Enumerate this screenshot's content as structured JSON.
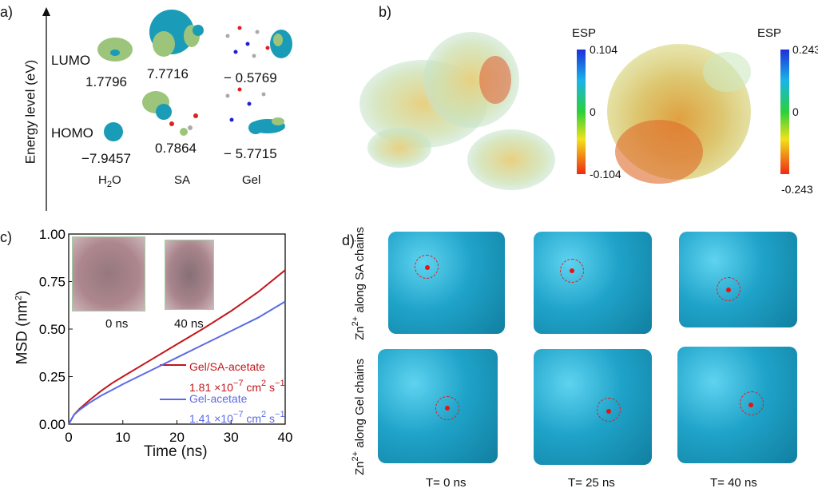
{
  "panels": {
    "a": "a)",
    "b": "b)",
    "c": "c)",
    "d": "d)"
  },
  "panel_a": {
    "ylabel": "Energy level (eV)",
    "lumo_label": "LUMO",
    "homo_label": "HOMO",
    "molecules": [
      {
        "name_main": "H",
        "name_sub": "2",
        "name_tail": "O",
        "lumo": "1.7796",
        "homo": "−7.9457"
      },
      {
        "name_main": "SA",
        "name_sub": "",
        "name_tail": "",
        "lumo": "7.7716",
        "homo": "0.7864"
      },
      {
        "name_main": "Gel",
        "name_sub": "",
        "name_tail": "",
        "lumo": "− 0.5769",
        "homo": "− 5.7715"
      }
    ]
  },
  "panel_b": {
    "colorbars": [
      {
        "title": "ESP",
        "max": "0.104",
        "mid": "0",
        "min": "-0.104"
      },
      {
        "title": "ESP",
        "max": "0.243",
        "mid": "0",
        "min": "-0.243"
      }
    ]
  },
  "chart_data": {
    "type": "line",
    "xlabel": "Time (ns)",
    "ylabel_main": "MSD (nm",
    "ylabel_sup": "2",
    "ylabel_tail": ")",
    "xlim": [
      0,
      40
    ],
    "ylim": [
      0,
      1
    ],
    "xticks": [
      "0",
      "10",
      "20",
      "30",
      "40"
    ],
    "yticks": [
      "0.00",
      "0.25",
      "0.50",
      "0.75",
      "1.00"
    ],
    "legend_placement": "bottom-right",
    "inset_labels": [
      "0 ns",
      "40 ns"
    ],
    "series": [
      {
        "name": "Gel/SA-acetate",
        "coef_main": "1.81 ×10",
        "coef_exp": "−7",
        "coef_unit": " cm",
        "coef_unit_exp": "2",
        "coef_s": " s",
        "coef_s_exp": "−1",
        "color": "#c0161b",
        "x": [
          0,
          1,
          2,
          4,
          6,
          8,
          10,
          15,
          20,
          25,
          30,
          35,
          40
        ],
        "y": [
          0,
          0.05,
          0.08,
          0.13,
          0.175,
          0.215,
          0.25,
          0.335,
          0.42,
          0.505,
          0.595,
          0.695,
          0.81
        ]
      },
      {
        "name": "Gel-acetate",
        "coef_main": "1.41 ×10",
        "coef_exp": "−7",
        "coef_unit": " cm",
        "coef_unit_exp": "2",
        "coef_s": " s",
        "coef_s_exp": "−1",
        "color": "#5a6be6",
        "x": [
          0,
          1,
          2,
          4,
          6,
          8,
          10,
          15,
          20,
          25,
          30,
          35,
          40
        ],
        "y": [
          0,
          0.05,
          0.075,
          0.115,
          0.15,
          0.18,
          0.21,
          0.28,
          0.35,
          0.42,
          0.49,
          0.56,
          0.645
        ]
      }
    ]
  },
  "panel_d": {
    "row_labels": [
      {
        "main": "Zn",
        "sup": "2+",
        "tail": " along SA chains"
      },
      {
        "main": "Zn",
        "sup": "2+",
        "tail": " along Gel chains"
      }
    ],
    "time_labels": [
      "T= 0 ns",
      "T= 25 ns",
      "T= 40 ns"
    ]
  },
  "colors": {
    "isosurface": "#1fa3c9",
    "zn_marker": "#dd2222",
    "lumo_lobe": "#9cc47a",
    "homo_lobe": "#1a9bb8"
  }
}
